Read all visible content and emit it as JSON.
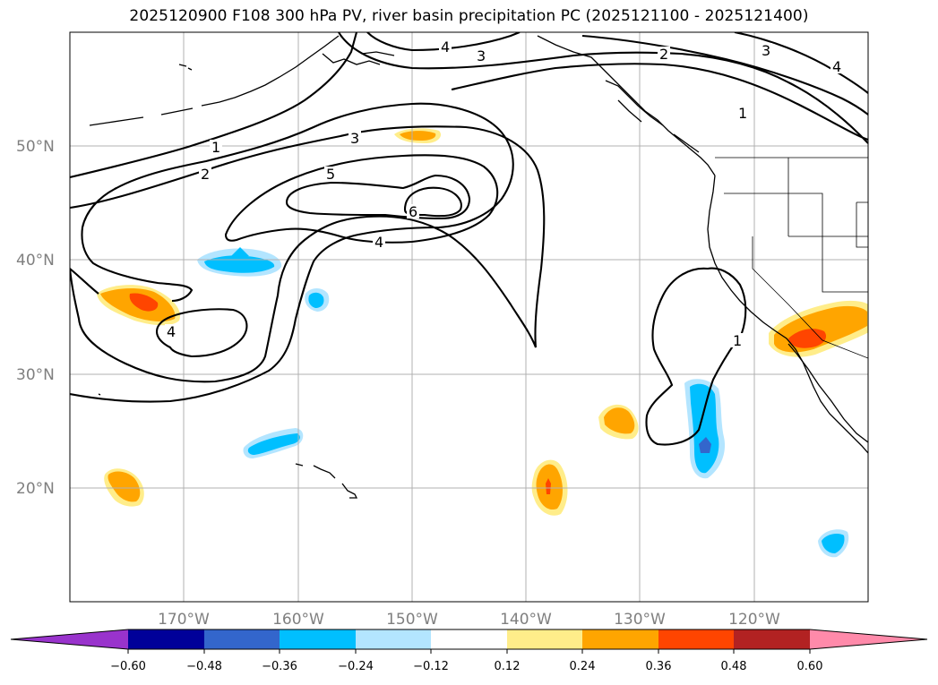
{
  "title": "2025120900 F108 300 hPa PV, river basin precipitation PC (2025121100 - 2025121400)",
  "map": {
    "lon_range": [
      -180,
      -110
    ],
    "lat_range": [
      10,
      60
    ],
    "lat_labels": [
      "20°N",
      "30°N",
      "40°N",
      "50°N"
    ],
    "lon_labels": [
      "170°W",
      "160°W",
      "150°W",
      "140°W",
      "130°W",
      "120°W"
    ],
    "contour_labels": {
      "c1_west": "1",
      "c2_west": "2",
      "c3": "3",
      "c4_north": "4",
      "c3_north": "3",
      "c5": "5",
      "c6": "6",
      "c4_mid": "4",
      "c4_west": "4",
      "c2_ne": "2",
      "c1_ne": "1",
      "c3_ne": "3",
      "c4_ne": "4",
      "c1_cutoff": "1"
    },
    "precip_anomalies": [
      {
        "name": "dateline-positive",
        "lon": -176.5,
        "lat": 35.5,
        "value": 0.42
      },
      {
        "name": "south-west-positive",
        "lon": -175,
        "lat": 20,
        "value": 0.3
      },
      {
        "name": "north-pacific-negative",
        "lon": -165,
        "lat": 39.5,
        "value": -0.32
      },
      {
        "name": "small-negative",
        "lon": -158,
        "lat": 36.5,
        "value": -0.28
      },
      {
        "name": "hawaii-negative",
        "lon": -163.5,
        "lat": 24,
        "value": -0.3
      },
      {
        "name": "gulf-positive",
        "lon": -149.5,
        "lat": 51,
        "value": 0.3
      },
      {
        "name": "tropical-positive",
        "lon": -138,
        "lat": 20,
        "value": 0.42
      },
      {
        "name": "small-positive",
        "lon": -131.5,
        "lat": 26,
        "value": 0.3
      },
      {
        "name": "baja-west-negative",
        "lon": -124.5,
        "lat": 25,
        "value": -0.45
      },
      {
        "name": "southwest-us-positive",
        "lon": -115,
        "lat": 33.5,
        "value": 0.42
      },
      {
        "name": "baja-south-negative",
        "lon": -113.5,
        "lat": 15,
        "value": -0.3
      }
    ]
  },
  "colorbar": {
    "colors": [
      "#9933cc",
      "#000099",
      "#3366cc",
      "#00bfff",
      "#b3e5ff",
      "#ffffff",
      "#ffed8a",
      "#ffa500",
      "#ff4500",
      "#b22222",
      "#ff8aaa"
    ],
    "tick_labels": [
      "−0.60",
      "−0.48",
      "−0.36",
      "−0.24",
      "−0.12",
      "0.12",
      "0.24",
      "0.36",
      "0.48",
      "0.60"
    ]
  }
}
